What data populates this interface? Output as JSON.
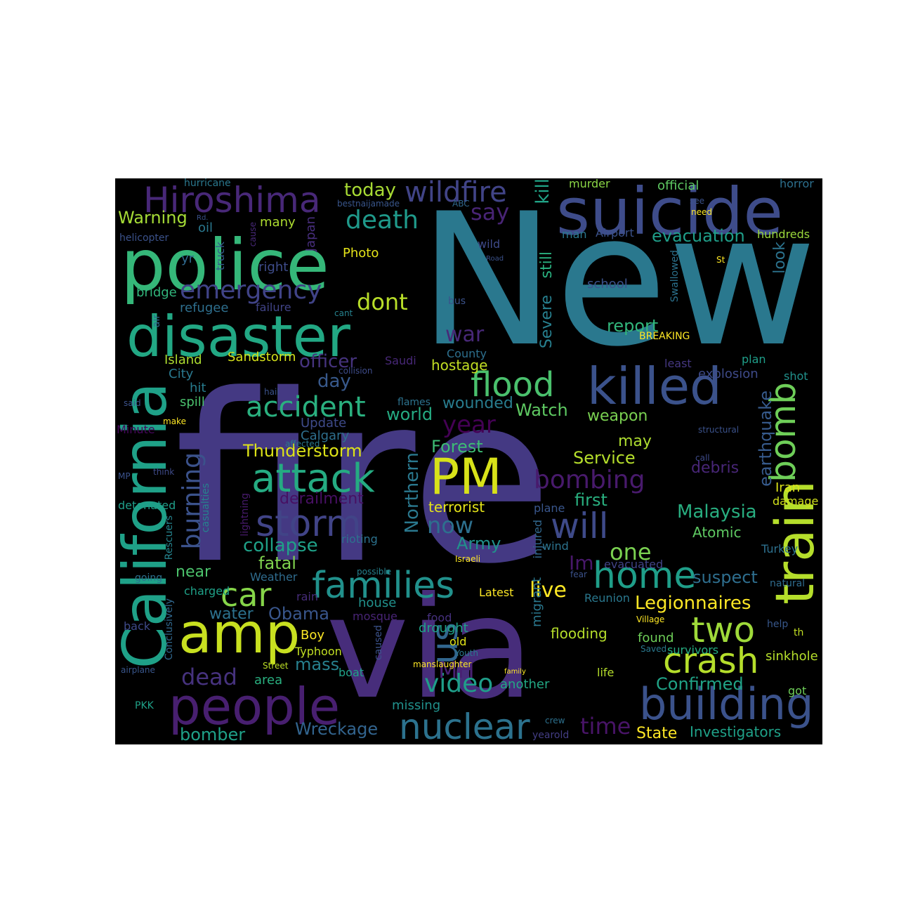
{
  "words": [
    {
      "text": "New",
      "color": "#2a788e"
    },
    {
      "text": "fire",
      "color": "#443983"
    },
    {
      "text": "via",
      "color": "#472d7b"
    },
    {
      "text": "police",
      "color": "#35b779"
    },
    {
      "text": "suicide",
      "color": "#3e4c8a"
    },
    {
      "text": "disaster",
      "color": "#22a884"
    },
    {
      "text": "California",
      "color": "#1fa188"
    },
    {
      "text": "train",
      "color": "#b5de2b"
    },
    {
      "text": "killed",
      "color": "#3b528b"
    },
    {
      "text": "people",
      "color": "#481f70"
    },
    {
      "text": "amp",
      "color": "#c8e020"
    },
    {
      "text": "building",
      "color": "#3b528b"
    },
    {
      "text": "families",
      "color": "#21918c"
    },
    {
      "text": "PM",
      "color": "#d8e219"
    },
    {
      "text": "attack",
      "color": "#25ab82"
    },
    {
      "text": "Hiroshima",
      "color": "#482878"
    },
    {
      "text": "nuclear",
      "color": "#2c728e"
    },
    {
      "text": "storm",
      "color": "#414487"
    },
    {
      "text": "home",
      "color": "#1f9e89"
    },
    {
      "text": "crash",
      "color": "#b5de2b"
    },
    {
      "text": "flood",
      "color": "#4ac16d"
    },
    {
      "text": "bomb",
      "color": "#6ece58"
    },
    {
      "text": "wildfire",
      "color": "#414487"
    },
    {
      "text": "will",
      "color": "#3e4a89"
    },
    {
      "text": "two",
      "color": "#9fda3a"
    },
    {
      "text": "us",
      "color": "#31668e"
    },
    {
      "text": "accident",
      "color": "#2ab07f"
    },
    {
      "text": "car",
      "color": "#86d549"
    },
    {
      "text": "emergency",
      "color": "#404387"
    },
    {
      "text": "bombing",
      "color": "#481a6c"
    },
    {
      "text": "death",
      "color": "#1f998a"
    },
    {
      "text": "video",
      "color": "#1f9e89"
    },
    {
      "text": "burning",
      "color": "#3b528b"
    },
    {
      "text": "dont",
      "color": "#b8de29"
    },
    {
      "text": "say",
      "color": "#482475"
    },
    {
      "text": "today",
      "color": "#a8db34"
    },
    {
      "text": "year",
      "color": "#440154"
    },
    {
      "text": "dead",
      "color": "#46327e"
    },
    {
      "text": "Thunderstorm",
      "color": "#dde318"
    },
    {
      "text": "collapse",
      "color": "#1fa188"
    },
    {
      "text": "now",
      "color": "#2d708e"
    },
    {
      "text": "one",
      "color": "#7ad151"
    },
    {
      "text": "Legionnaires",
      "color": "#fde725"
    },
    {
      "text": "Malaysia",
      "color": "#28ae80"
    },
    {
      "text": "live",
      "color": "#fde725"
    },
    {
      "text": "MH",
      "color": "#482173"
    },
    {
      "text": "time",
      "color": "#481467"
    },
    {
      "text": "Obama",
      "color": "#39568c"
    },
    {
      "text": "Northern",
      "color": "#2a788e"
    },
    {
      "text": "derailment",
      "color": "#471063"
    },
    {
      "text": "officer",
      "color": "#46337e"
    },
    {
      "text": "day",
      "color": "#38598c"
    },
    {
      "text": "world",
      "color": "#25ab82"
    },
    {
      "text": "Watch",
      "color": "#5ec962"
    },
    {
      "text": "war",
      "color": "#482878"
    },
    {
      "text": "Forest",
      "color": "#3dbc74"
    },
    {
      "text": "Army",
      "color": "#21918c"
    },
    {
      "text": "first",
      "color": "#29af7f"
    },
    {
      "text": "Im",
      "color": "#48186a"
    },
    {
      "text": "Service",
      "color": "#b5de2b"
    },
    {
      "text": "wounded",
      "color": "#287c8e"
    },
    {
      "text": "fatal",
      "color": "#7fd34e"
    },
    {
      "text": "mass",
      "color": "#27808e"
    },
    {
      "text": "water",
      "color": "#2c728e"
    },
    {
      "text": "Confirmed",
      "color": "#20a386"
    },
    {
      "text": "Wreckage",
      "color": "#32648e"
    },
    {
      "text": "bomber",
      "color": "#1fa188"
    },
    {
      "text": "State",
      "color": "#fde725"
    },
    {
      "text": "Investigators",
      "color": "#1fa188"
    },
    {
      "text": "report",
      "color": "#31b57b"
    },
    {
      "text": "evacuation",
      "color": "#1f9e89"
    },
    {
      "text": "suspect",
      "color": "#2e6e8e"
    },
    {
      "text": "near",
      "color": "#4cc26c"
    },
    {
      "text": "earthquake",
      "color": "#375b8d"
    },
    {
      "text": "Severe",
      "color": "#277f8e"
    },
    {
      "text": "still",
      "color": "#2ab07f"
    },
    {
      "text": "kill",
      "color": "#20a386"
    },
    {
      "text": "look",
      "color": "#2c738e"
    },
    {
      "text": "weapon",
      "color": "#7ad151"
    },
    {
      "text": "may",
      "color": "#addc30"
    },
    {
      "text": "Atomic",
      "color": "#5ec962"
    },
    {
      "text": "debris",
      "color": "#482677"
    },
    {
      "text": "terrorist",
      "color": "#e5e419"
    },
    {
      "text": "Warning",
      "color": "#a5db36"
    },
    {
      "text": "hostage",
      "color": "#c2df23"
    },
    {
      "text": "Sandstorm",
      "color": "#d5e21a"
    },
    {
      "text": "Island",
      "color": "#addc30"
    },
    {
      "text": "City",
      "color": "#2a788e"
    },
    {
      "text": "spill",
      "color": "#4ac16d"
    },
    {
      "text": "hit",
      "color": "#287c8e"
    },
    {
      "text": "refugee",
      "color": "#2e6f8e"
    },
    {
      "text": "bridge",
      "color": "#31b57b"
    },
    {
      "text": "many",
      "color": "#addc30"
    },
    {
      "text": "right",
      "color": "#3e4c8a"
    },
    {
      "text": "truck",
      "color": "#365c8d"
    },
    {
      "text": "oil",
      "color": "#2a788e"
    },
    {
      "text": "Japan",
      "color": "#472e7c"
    },
    {
      "text": "Photo",
      "color": "#e5e419"
    },
    {
      "text": "failure",
      "color": "#414487"
    },
    {
      "text": "Calgary",
      "color": "#2e6f8e"
    },
    {
      "text": "Update",
      "color": "#3e4a89"
    },
    {
      "text": "murder",
      "color": "#8bd646"
    },
    {
      "text": "official",
      "color": "#5ec962"
    },
    {
      "text": "horror",
      "color": "#2d708e"
    },
    {
      "text": "Airport",
      "color": "#3b528b"
    },
    {
      "text": "man",
      "color": "#2a788e"
    },
    {
      "text": "hundreds",
      "color": "#9bd93c"
    },
    {
      "text": "school",
      "color": "#3b528b"
    },
    {
      "text": "BREAKING",
      "color": "#fde725"
    },
    {
      "text": "County",
      "color": "#2d708e"
    },
    {
      "text": "Saudi",
      "color": "#482878"
    },
    {
      "text": "least",
      "color": "#453781"
    },
    {
      "text": "explosion",
      "color": "#3e4a89"
    },
    {
      "text": "plan",
      "color": "#1f9e89"
    },
    {
      "text": "shot",
      "color": "#21918c"
    },
    {
      "text": "Iran",
      "color": "#dde318"
    },
    {
      "text": "damage",
      "color": "#d2e21b"
    },
    {
      "text": "Turkey",
      "color": "#2d708e"
    },
    {
      "text": "natural",
      "color": "#2f6c8e"
    },
    {
      "text": "sinkhole",
      "color": "#b5de2b"
    },
    {
      "text": "got",
      "color": "#6ece58"
    },
    {
      "text": "th",
      "color": "#c2df23"
    },
    {
      "text": "help",
      "color": "#38588c"
    },
    {
      "text": "flooding",
      "color": "#b5de2b"
    },
    {
      "text": "found",
      "color": "#6ece58"
    },
    {
      "text": "survivors",
      "color": "#26ad81"
    },
    {
      "text": "another",
      "color": "#22a884"
    },
    {
      "text": "life",
      "color": "#b5de2b"
    },
    {
      "text": "Reunion",
      "color": "#2a788e"
    },
    {
      "text": "evacuated",
      "color": "#414487"
    },
    {
      "text": "wind",
      "color": "#2c738e"
    },
    {
      "text": "plane",
      "color": "#39568c"
    },
    {
      "text": "injured",
      "color": "#31688e"
    },
    {
      "text": "migrant",
      "color": "#2a788e"
    },
    {
      "text": "Latest",
      "color": "#fde725"
    },
    {
      "text": "old",
      "color": "#e2e418"
    },
    {
      "text": "drought",
      "color": "#1fa188"
    },
    {
      "text": "food",
      "color": "#46307e"
    },
    {
      "text": "missing",
      "color": "#21918c"
    },
    {
      "text": "boat",
      "color": "#1fa188"
    },
    {
      "text": "area",
      "color": "#29af7f"
    },
    {
      "text": "house",
      "color": "#21918c"
    },
    {
      "text": "mosque",
      "color": "#482475"
    },
    {
      "text": "Boy",
      "color": "#fde725"
    },
    {
      "text": "Typhoon",
      "color": "#c2df23"
    },
    {
      "text": "caused",
      "color": "#3b528b"
    },
    {
      "text": "rain",
      "color": "#472c7a"
    },
    {
      "text": "Weather",
      "color": "#2f6c8e"
    },
    {
      "text": "charged",
      "color": "#1fa188"
    },
    {
      "text": "back",
      "color": "#3e4a89"
    },
    {
      "text": "PKK",
      "color": "#1fa188"
    },
    {
      "text": "Conclusively",
      "color": "#31688e"
    },
    {
      "text": "going",
      "color": "#2c728e"
    },
    {
      "text": "casualties",
      "color": "#26828e"
    },
    {
      "text": "Rescuers",
      "color": "#25848e"
    },
    {
      "text": "detonated",
      "color": "#1f9e89"
    },
    {
      "text": "lightning",
      "color": "#481b6d"
    },
    {
      "text": "rioting",
      "color": "#2c728e"
    },
    {
      "text": "flames",
      "color": "#2c728e"
    },
    {
      "text": "air",
      "color": "#2f6b8e"
    },
    {
      "text": "helicopter",
      "color": "#3b528b"
    },
    {
      "text": "hurricane",
      "color": "#2a788e"
    },
    {
      "text": "Minute",
      "color": "#46085c"
    },
    {
      "text": "yr",
      "color": "#30698e"
    },
    {
      "text": "wild",
      "color": "#3e4a89"
    },
    {
      "text": "bus",
      "color": "#3b528b"
    },
    {
      "text": "crew",
      "color": "#2d718e"
    },
    {
      "text": "yearold",
      "color": "#433d84"
    },
    {
      "text": "Swallowed",
      "color": "#2c728e"
    },
    {
      "text": "need",
      "color": "#fde725"
    },
    {
      "text": "see",
      "color": "#3b528b"
    },
    {
      "text": "St",
      "color": "#fde725"
    },
    {
      "text": "bestnaijamade",
      "color": "#39568c"
    },
    {
      "text": "ABC",
      "color": "#31688e"
    },
    {
      "text": "Rd.",
      "color": "#3b528b"
    },
    {
      "text": "cause",
      "color": "#482878"
    },
    {
      "text": "cant",
      "color": "#26828e"
    },
    {
      "text": "collision",
      "color": "#3e4c8a"
    },
    {
      "text": "hail",
      "color": "#3b528b"
    },
    {
      "text": "said",
      "color": "#3b528b"
    },
    {
      "text": "make",
      "color": "#fde725"
    },
    {
      "text": "affected",
      "color": "#2a788e"
    },
    {
      "text": "think",
      "color": "#3e4a89"
    },
    {
      "text": "MP",
      "color": "#3b528b"
    },
    {
      "text": "possible",
      "color": "#26828e"
    },
    {
      "text": "Israeli",
      "color": "#fde725"
    },
    {
      "text": "fear",
      "color": "#3b528b"
    },
    {
      "text": "family",
      "color": "#fde725"
    },
    {
      "text": "Youth",
      "color": "#2a788e"
    },
    {
      "text": "manslaughter",
      "color": "#fde725"
    },
    {
      "text": "Street",
      "color": "#bddf26"
    },
    {
      "text": "airplane",
      "color": "#39568c"
    },
    {
      "text": "Village",
      "color": "#fde725"
    },
    {
      "text": "Saved",
      "color": "#2a788e"
    },
    {
      "text": "structural",
      "color": "#3b528b"
    },
    {
      "text": "call",
      "color": "#3e4a89"
    },
    {
      "text": "Road",
      "color": "#3b528b"
    }
  ]
}
